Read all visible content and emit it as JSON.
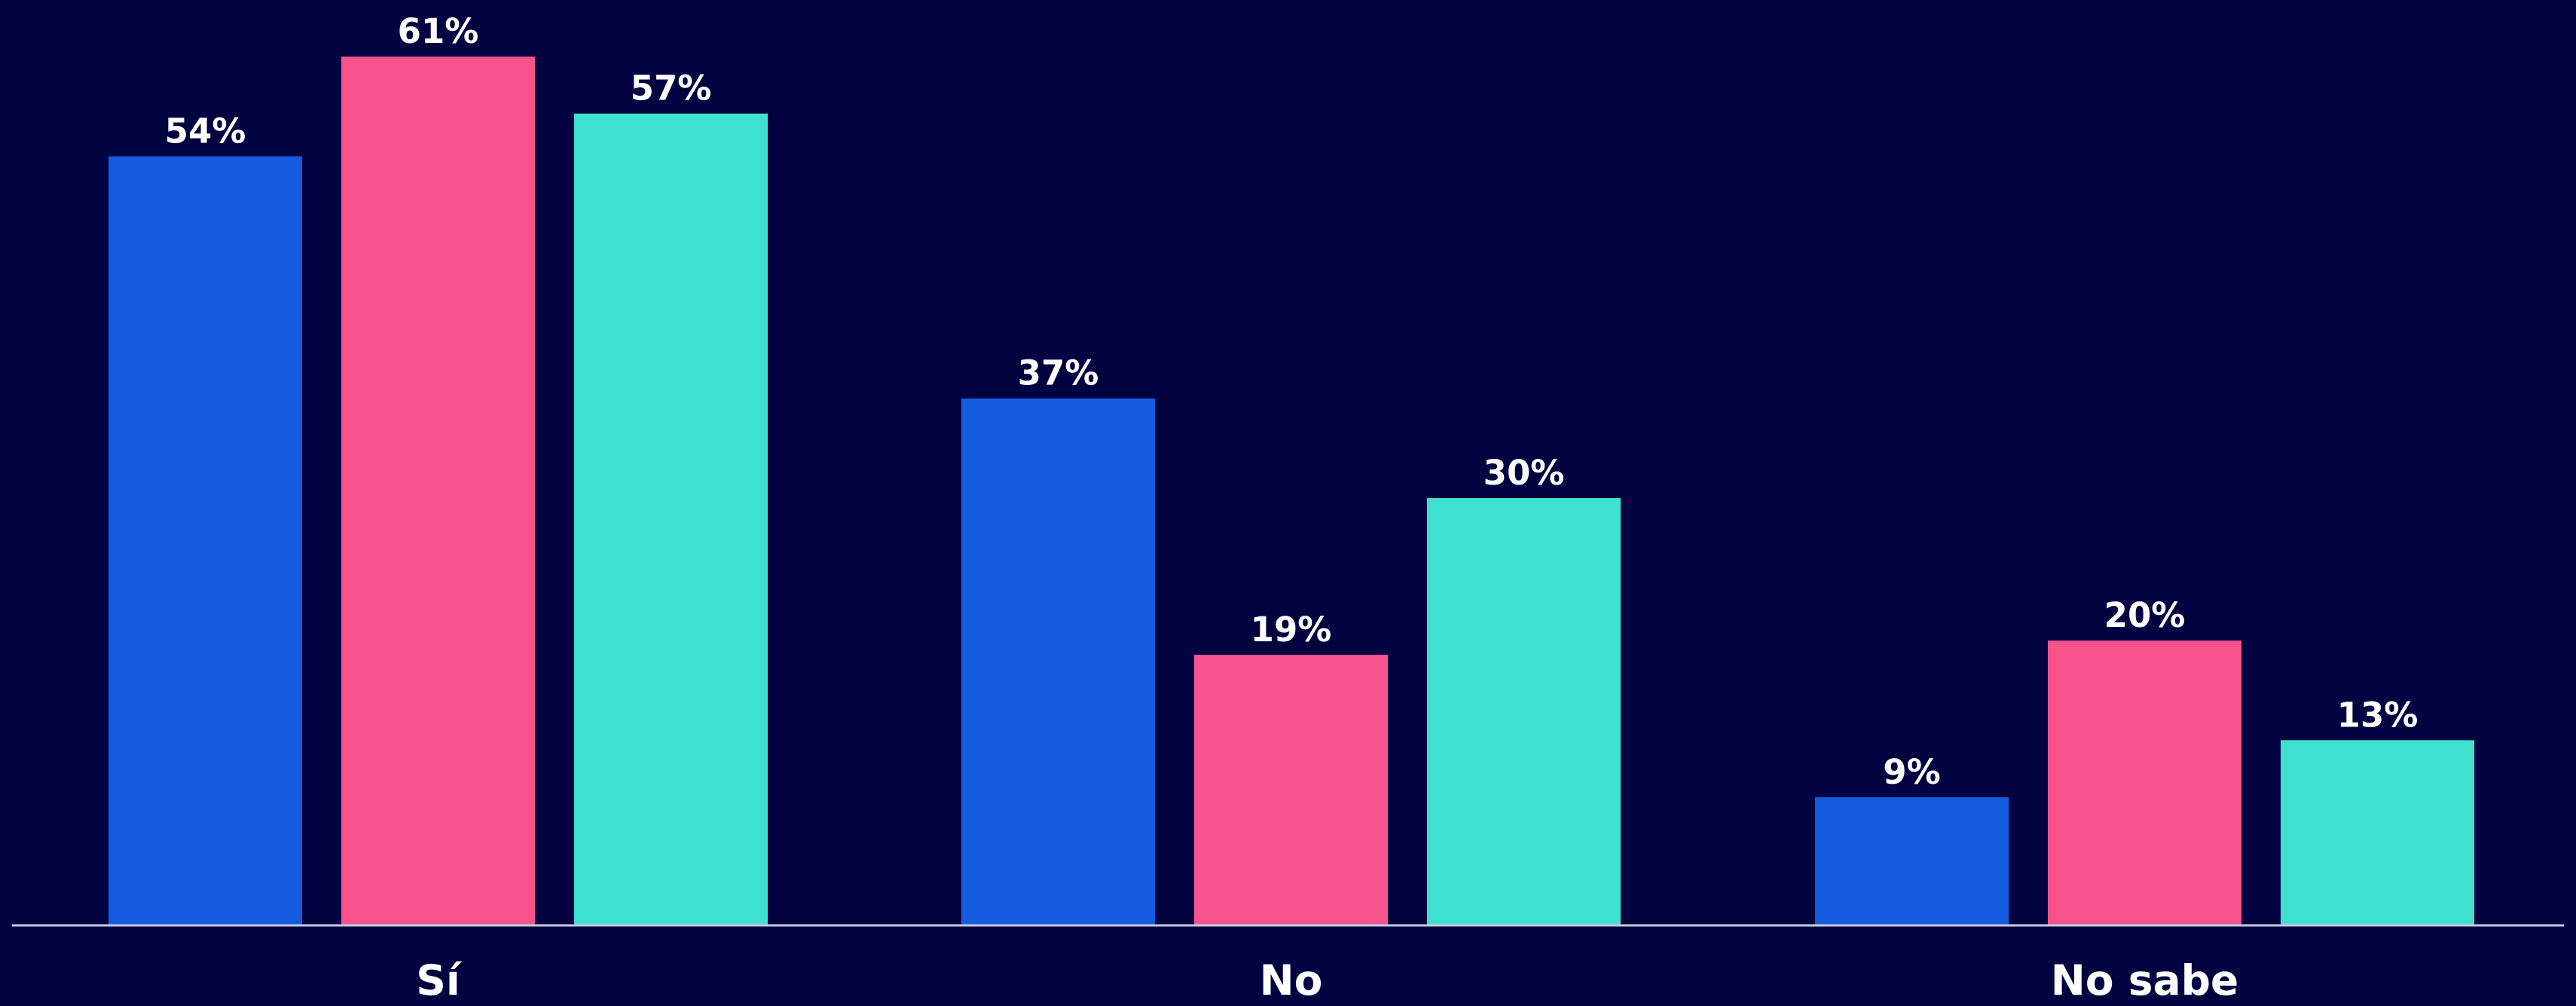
{
  "background": "#020240",
  "axis_color": "#c9c9e0",
  "label_color": "#ffffff",
  "chart_data": {
    "type": "bar",
    "title": "",
    "xlabel": "",
    "ylabel": "",
    "categories": [
      "Sí",
      "No",
      "No sabe"
    ],
    "ylim": [
      0,
      100
    ],
    "grid": false,
    "legend": "none",
    "series": [
      {
        "values": [
          54,
          37,
          9
        ],
        "labels": [
          "54%",
          "37%",
          "9%"
        ],
        "color": "#145BE0"
      },
      {
        "values": [
          61,
          19,
          20
        ],
        "labels": [
          "61%",
          "19%",
          "20%"
        ],
        "color": "#F8528C"
      },
      {
        "values": [
          57,
          30,
          13
        ],
        "labels": [
          "57%",
          "30%",
          "13%"
        ],
        "color": "#40E0D0"
      }
    ]
  }
}
